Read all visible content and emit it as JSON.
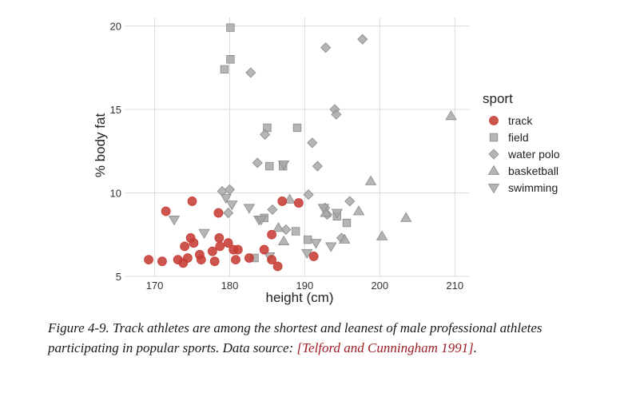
{
  "chart_data": {
    "type": "scatter",
    "xlabel": "height (cm)",
    "ylabel": "% body fat",
    "xlim": [
      166,
      212
    ],
    "ylim": [
      5,
      20.5
    ],
    "xticks": [
      170,
      180,
      190,
      200,
      210
    ],
    "yticks": [
      5,
      10,
      15,
      20
    ],
    "grid": true,
    "legend_title": "sport",
    "legend_position": "right",
    "series": [
      {
        "name": "track",
        "marker": "circle",
        "color": "#c63d36",
        "points": [
          [
            169.2,
            6.0
          ],
          [
            171.0,
            5.9
          ],
          [
            171.5,
            8.9
          ],
          [
            173.1,
            6.0
          ],
          [
            173.8,
            5.8
          ],
          [
            174.0,
            6.8
          ],
          [
            174.4,
            6.1
          ],
          [
            174.8,
            7.3
          ],
          [
            175.0,
            9.5
          ],
          [
            175.2,
            7.0
          ],
          [
            176.0,
            6.3
          ],
          [
            176.2,
            6.0
          ],
          [
            177.7,
            6.5
          ],
          [
            178.0,
            5.9
          ],
          [
            178.5,
            8.8
          ],
          [
            178.6,
            7.3
          ],
          [
            178.7,
            6.8
          ],
          [
            179.8,
            7.0
          ],
          [
            180.5,
            6.6
          ],
          [
            180.8,
            6.0
          ],
          [
            181.1,
            6.6
          ],
          [
            182.6,
            6.1
          ],
          [
            184.6,
            6.6
          ],
          [
            185.6,
            7.5
          ],
          [
            185.6,
            6.0
          ],
          [
            186.4,
            5.6
          ],
          [
            187.0,
            9.5
          ],
          [
            189.2,
            9.4
          ],
          [
            191.2,
            6.2
          ]
        ]
      },
      {
        "name": "field",
        "marker": "square",
        "color": "#a8a8a8",
        "points": [
          [
            179.3,
            17.4
          ],
          [
            180.1,
            19.9
          ],
          [
            180.1,
            18.0
          ],
          [
            183.3,
            6.1
          ],
          [
            184.6,
            8.5
          ],
          [
            185.0,
            13.9
          ],
          [
            185.3,
            11.6
          ],
          [
            187.1,
            11.6
          ],
          [
            188.8,
            7.7
          ],
          [
            189.0,
            13.9
          ],
          [
            190.4,
            7.2
          ],
          [
            194.3,
            8.6
          ],
          [
            195.6,
            8.2
          ]
        ]
      },
      {
        "name": "water polo",
        "marker": "diamond",
        "color": "#a8a8a8",
        "points": [
          [
            179.0,
            10.1
          ],
          [
            179.8,
            8.8
          ],
          [
            180.0,
            10.2
          ],
          [
            182.8,
            17.2
          ],
          [
            183.7,
            11.8
          ],
          [
            184.7,
            13.5
          ],
          [
            185.7,
            9.0
          ],
          [
            187.5,
            7.8
          ],
          [
            190.5,
            9.9
          ],
          [
            191.0,
            13.0
          ],
          [
            191.7,
            11.6
          ],
          [
            192.8,
            18.7
          ],
          [
            192.7,
            9.1
          ],
          [
            193.0,
            8.7
          ],
          [
            194.0,
            15.0
          ],
          [
            194.2,
            14.7
          ],
          [
            194.9,
            7.3
          ],
          [
            196.0,
            9.5
          ],
          [
            197.7,
            19.2
          ]
        ]
      },
      {
        "name": "basketball",
        "marker": "triangle-up",
        "color": "#a8a8a8",
        "points": [
          [
            186.5,
            7.9
          ],
          [
            187.2,
            7.1
          ],
          [
            188.0,
            9.6
          ],
          [
            192.8,
            8.8
          ],
          [
            195.3,
            7.2
          ],
          [
            197.2,
            8.9
          ],
          [
            198.8,
            10.7
          ],
          [
            200.3,
            7.4
          ],
          [
            203.5,
            8.5
          ],
          [
            209.5,
            14.6
          ]
        ]
      },
      {
        "name": "swimming",
        "marker": "triangle-down",
        "color": "#a8a8a8",
        "points": [
          [
            172.6,
            8.4
          ],
          [
            176.6,
            7.6
          ],
          [
            179.5,
            9.7
          ],
          [
            180.3,
            9.3
          ],
          [
            182.6,
            9.1
          ],
          [
            183.9,
            8.4
          ],
          [
            184.2,
            8.4
          ],
          [
            185.3,
            6.2
          ],
          [
            187.2,
            11.7
          ],
          [
            190.3,
            6.4
          ],
          [
            191.5,
            7.0
          ],
          [
            192.5,
            9.1
          ],
          [
            193.5,
            6.8
          ],
          [
            194.3,
            8.8
          ]
        ]
      }
    ]
  },
  "caption": {
    "text": "Figure 4-9. Track athletes are among the shortest and leanest of male professional athletes participating in popular sports. Data source: ",
    "citation": "[Telford and Cunningham 1991]",
    "end": "."
  }
}
